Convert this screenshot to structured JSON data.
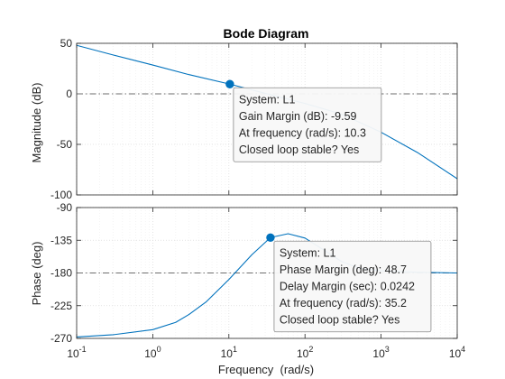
{
  "chart_data": {
    "type": "line",
    "title": "Bode Diagram",
    "xlabel": "Frequency  (rad/s)",
    "x_scale": "log",
    "xlim": [
      0.1,
      10000
    ],
    "x_ticks": [
      {
        "value": 0.1,
        "base": "10",
        "exp": "-1"
      },
      {
        "value": 1,
        "base": "10",
        "exp": "0"
      },
      {
        "value": 10,
        "base": "10",
        "exp": "1"
      },
      {
        "value": 100,
        "base": "10",
        "exp": "2"
      },
      {
        "value": 1000,
        "base": "10",
        "exp": "3"
      },
      {
        "value": 10000,
        "base": "10",
        "exp": "4"
      }
    ],
    "magnitude": {
      "ylabel": "Magnitude (dB)",
      "ylim": [
        -100,
        50
      ],
      "yticks": [
        50,
        0,
        -50,
        -100
      ],
      "reference_line": 0,
      "series": {
        "name": "L1",
        "points": [
          [
            0.1,
            48
          ],
          [
            0.3,
            38.5
          ],
          [
            1,
            28.5
          ],
          [
            3,
            19
          ],
          [
            10.3,
            9.59
          ],
          [
            30,
            0.5
          ],
          [
            100,
            -9.5
          ],
          [
            300,
            -20
          ],
          [
            1000,
            -38
          ],
          [
            3000,
            -58
          ],
          [
            10000,
            -84
          ]
        ]
      },
      "marker": {
        "x": 10.3,
        "y": 9.59
      },
      "datatip": {
        "lines": [
          "System: L1",
          "Gain Margin (dB): -9.59",
          "At frequency (rad/s): 10.3",
          "Closed loop stable? Yes"
        ]
      }
    },
    "phase": {
      "ylabel": "Phase (deg)",
      "ylim": [
        -270,
        -90
      ],
      "yticks": [
        -90,
        -135,
        -180,
        -225,
        -270
      ],
      "reference_line": -180,
      "series": {
        "name": "L1",
        "points": [
          [
            0.1,
            -268
          ],
          [
            0.3,
            -265
          ],
          [
            1,
            -258
          ],
          [
            2,
            -248
          ],
          [
            3,
            -237
          ],
          [
            5,
            -220
          ],
          [
            10,
            -189
          ],
          [
            20,
            -155
          ],
          [
            35.2,
            -131.3
          ],
          [
            60,
            -126
          ],
          [
            100,
            -132
          ],
          [
            200,
            -152
          ],
          [
            300,
            -164
          ],
          [
            500,
            -173
          ],
          [
            1000,
            -177
          ],
          [
            3000,
            -179
          ],
          [
            10000,
            -180
          ]
        ]
      },
      "marker": {
        "x": 35.2,
        "y": -131.3
      },
      "datatip": {
        "lines": [
          "System: L1",
          "Phase Margin (deg): 48.7",
          "Delay Margin (sec): 0.0242",
          "At frequency (rad/s): 35.2",
          "Closed loop stable? Yes"
        ]
      }
    },
    "colors": {
      "line": "#0072BD",
      "marker": "#0072BD",
      "grid": "#dcdcdc",
      "axes": "#262626",
      "reference": "#6e6e6e",
      "tip_fill": "#f8f8f8",
      "tip_border": "#8a8a8a"
    }
  }
}
